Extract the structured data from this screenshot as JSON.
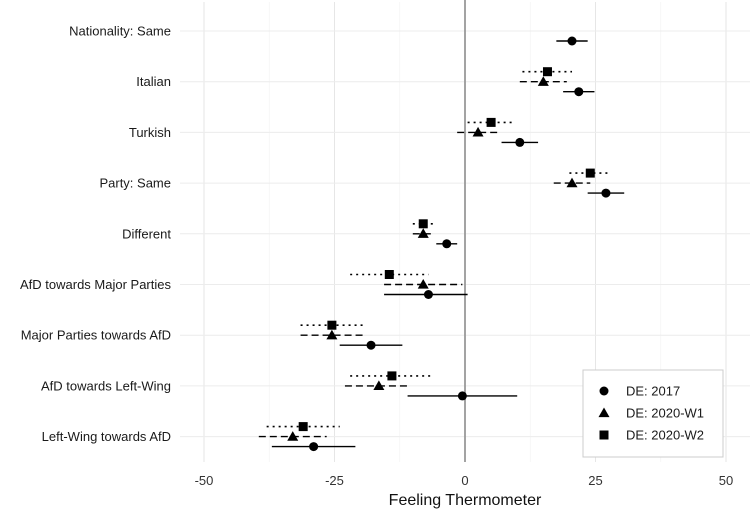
{
  "chart_data": {
    "type": "dot-and-whisker",
    "xlabel": "Feeling Thermometer",
    "ylabel": "",
    "xlim": [
      -50,
      50
    ],
    "x_ticks": [
      -50,
      -25,
      0,
      25,
      50
    ],
    "x_tick_labels": [
      "-50",
      "-25",
      "0",
      "25",
      "50"
    ],
    "reference_line": 0,
    "grid": true,
    "legend_position": "bottom-right",
    "categories": [
      "Nationality: Same",
      "Italian",
      "Turkish",
      "Party: Same",
      "Different",
      "AfD towards Major Parties",
      "Major Parties towards AfD",
      "AfD towards Left-Wing",
      "Left-Wing towards AfD"
    ],
    "series": [
      {
        "name": "DE: 2017",
        "marker": "circle",
        "line": "solid",
        "points": [
          {
            "estimate": 20.5,
            "low": 17.5,
            "high": 23.5
          },
          {
            "estimate": 21.8,
            "low": 18.8,
            "high": 24.8
          },
          {
            "estimate": 10.5,
            "low": 7.0,
            "high": 14.0
          },
          {
            "estimate": 27.0,
            "low": 23.5,
            "high": 30.5
          },
          {
            "estimate": -3.5,
            "low": -5.5,
            "high": -1.5
          },
          {
            "estimate": -7.0,
            "low": -15.5,
            "high": 0.5
          },
          {
            "estimate": -18.0,
            "low": -24.0,
            "high": -12.0
          },
          {
            "estimate": -0.5,
            "low": -11.0,
            "high": 10.0
          },
          {
            "estimate": -29.0,
            "low": -37.0,
            "high": -21.0
          }
        ]
      },
      {
        "name": "DE: 2020-W1",
        "marker": "triangle",
        "line": "dashed",
        "points": [
          null,
          {
            "estimate": 15.0,
            "low": 10.5,
            "high": 19.5
          },
          {
            "estimate": 2.5,
            "low": -1.5,
            "high": 6.5
          },
          {
            "estimate": 20.5,
            "low": 17.0,
            "high": 24.0
          },
          {
            "estimate": -8.0,
            "low": -10.0,
            "high": -6.0
          },
          {
            "estimate": -8.0,
            "low": -15.5,
            "high": -0.5
          },
          {
            "estimate": -25.5,
            "low": -31.5,
            "high": -19.5
          },
          {
            "estimate": -16.5,
            "low": -23.0,
            "high": -10.5
          },
          {
            "estimate": -33.0,
            "low": -39.5,
            "high": -26.5
          }
        ]
      },
      {
        "name": "DE: 2020-W2",
        "marker": "square",
        "line": "dotted",
        "points": [
          null,
          {
            "estimate": 15.8,
            "low": 11.0,
            "high": 20.5
          },
          {
            "estimate": 5.0,
            "low": 0.5,
            "high": 9.5
          },
          {
            "estimate": 24.0,
            "low": 20.0,
            "high": 28.0
          },
          {
            "estimate": -8.0,
            "low": -10.0,
            "high": -6.0
          },
          {
            "estimate": -14.5,
            "low": -22.0,
            "high": -7.0
          },
          {
            "estimate": -25.5,
            "low": -31.5,
            "high": -19.5
          },
          {
            "estimate": -14.0,
            "low": -22.0,
            "high": -6.5
          },
          {
            "estimate": -31.0,
            "low": -38.0,
            "high": -24.0
          }
        ]
      }
    ]
  }
}
